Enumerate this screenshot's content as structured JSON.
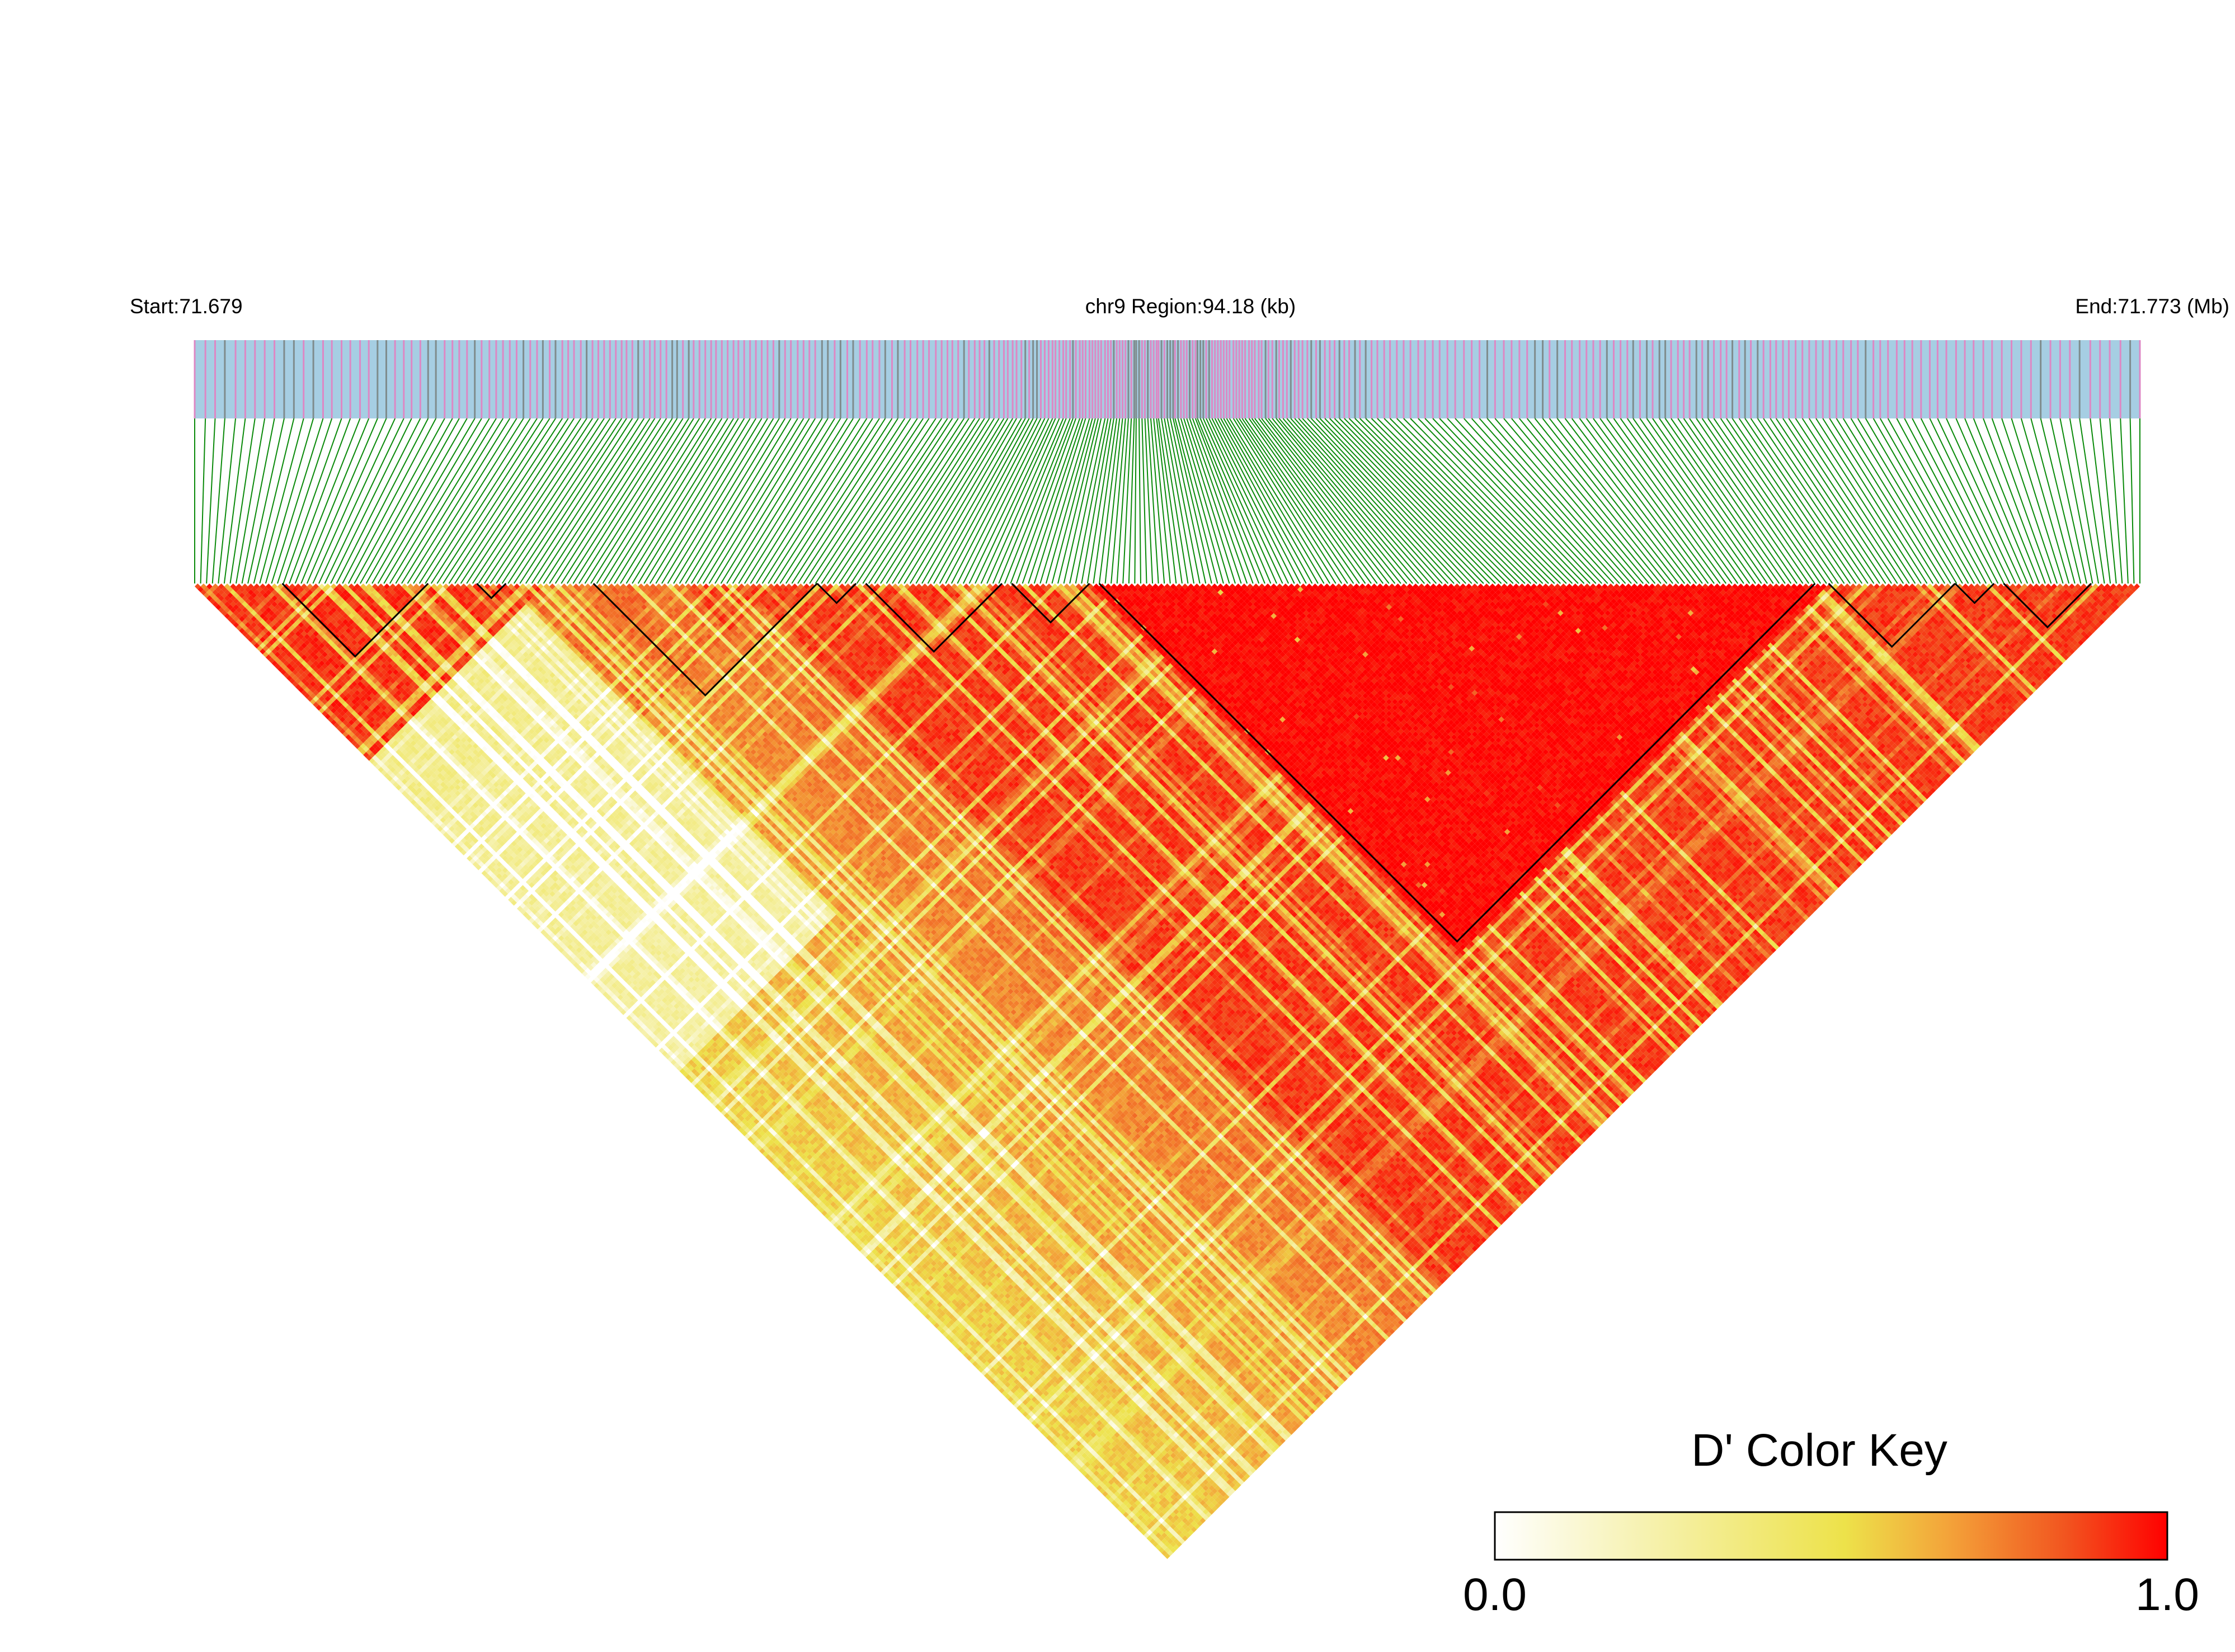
{
  "chart_data": {
    "type": "heatmap",
    "subtype": "linkage-disequilibrium-triangle",
    "header": {
      "start_label": "Start:71.679",
      "region_label": "chr9 Region:94.18 (kb)",
      "end_label": "End:71.773 (Mb)"
    },
    "region": {
      "chromosome": "chr9",
      "start_mb": 71.679,
      "end_mb": 71.773,
      "length_kb": 94.18
    },
    "color_key": {
      "title": "D' Color Key",
      "min_label": "0.0",
      "max_label": "1.0",
      "range": [
        0.0,
        1.0
      ],
      "stops": [
        "#ffffff",
        "#f7f3b8",
        "#ede24a",
        "#f3a53a",
        "#f2541f",
        "#ff0000"
      ]
    },
    "track_colors": {
      "gene_bar": "#a6cee3",
      "snp_tick_pink": "#dd88c4",
      "snp_tick_gray": "#7f8c8d",
      "connector_lines": "#0a8a0a",
      "block_outline": "#000000"
    },
    "snp_count_approx": 330,
    "ld_pattern": {
      "description": "Pairwise D' between SNPs; high LD (red) across most of region, low LD (pale yellow) band between the left third and the remainder",
      "blocks": [
        {
          "from_fraction": 0.045,
          "to_fraction": 0.12
        },
        {
          "from_fraction": 0.145,
          "to_fraction": 0.16
        },
        {
          "from_fraction": 0.205,
          "to_fraction": 0.32
        },
        {
          "from_fraction": 0.32,
          "to_fraction": 0.34
        },
        {
          "from_fraction": 0.345,
          "to_fraction": 0.415
        },
        {
          "from_fraction": 0.42,
          "to_fraction": 0.46
        },
        {
          "from_fraction": 0.465,
          "to_fraction": 0.833
        },
        {
          "from_fraction": 0.84,
          "to_fraction": 0.905
        },
        {
          "from_fraction": 0.905,
          "to_fraction": 0.925
        },
        {
          "from_fraction": 0.93,
          "to_fraction": 0.975
        }
      ]
    }
  }
}
